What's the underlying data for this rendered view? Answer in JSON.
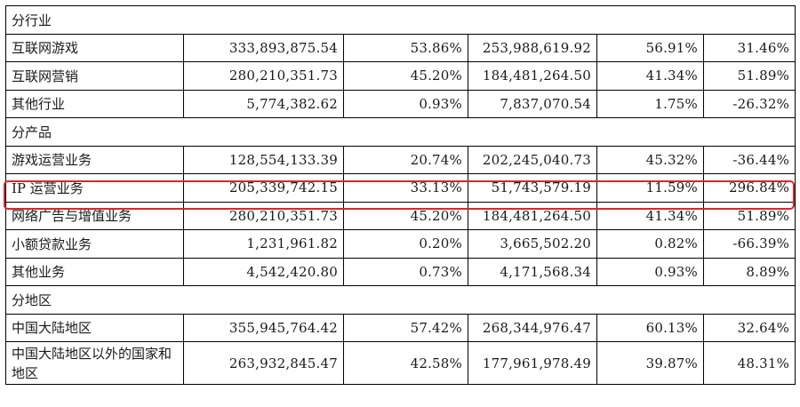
{
  "table": {
    "rows": [
      {
        "type": "section",
        "label": "分行业"
      },
      {
        "type": "data",
        "label": "互联网游戏",
        "values": [
          "333,893,875.54",
          "53.86%",
          "253,988,619.92",
          "56.91%",
          "31.46%"
        ]
      },
      {
        "type": "data",
        "label": "互联网营销",
        "values": [
          "280,210,351.73",
          "45.20%",
          "184,481,264.50",
          "41.34%",
          "51.89%"
        ]
      },
      {
        "type": "data",
        "label": "其他行业",
        "values": [
          "5,774,382.62",
          "0.93%",
          "7,837,070.54",
          "1.75%",
          "-26.32%"
        ]
      },
      {
        "type": "section",
        "label": "分产品"
      },
      {
        "type": "data",
        "label": "游戏运营业务",
        "values": [
          "128,554,133.39",
          "20.74%",
          "202,245,040.73",
          "45.32%",
          "-36.44%"
        ]
      },
      {
        "type": "data",
        "label": "IP 运营业务",
        "values": [
          "205,339,742.15",
          "33.13%",
          "51,743,579.19",
          "11.59%",
          "296.84%"
        ],
        "highlighted": true
      },
      {
        "type": "data",
        "label": "网络广告与增值业务",
        "values": [
          "280,210,351.73",
          "45.20%",
          "184,481,264.50",
          "41.34%",
          "51.89%"
        ]
      },
      {
        "type": "data",
        "label": "小额贷款业务",
        "values": [
          "1,231,961.82",
          "0.20%",
          "3,665,502.20",
          "0.82%",
          "-66.39%"
        ]
      },
      {
        "type": "data",
        "label": "其他业务",
        "values": [
          "4,542,420.80",
          "0.73%",
          "4,171,568.34",
          "0.93%",
          "8.89%"
        ]
      },
      {
        "type": "section",
        "label": "分地区"
      },
      {
        "type": "data",
        "label": "中国大陆地区",
        "values": [
          "355,945,764.42",
          "57.42%",
          "268,344,976.47",
          "60.13%",
          "32.64%"
        ]
      },
      {
        "type": "data",
        "label": "中国大陆地区以外的国家和地区",
        "values": [
          "263,932,845.47",
          "42.58%",
          "177,961,978.49",
          "39.87%",
          "48.31%"
        ],
        "tall": true
      }
    ]
  },
  "colors": {
    "highlight_border": "#d9262c",
    "grid": "#000000",
    "text": "#1a1a1a"
  }
}
